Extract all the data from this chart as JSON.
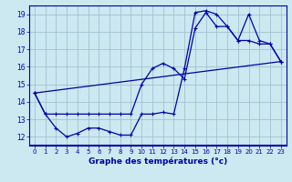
{
  "xlabel": "Graphe des températures (°c)",
  "bg_color": "#cce8f0",
  "line_color": "#0000aa",
  "xlim": [
    -0.5,
    23.5
  ],
  "ylim": [
    11.5,
    19.5
  ],
  "xticks": [
    0,
    1,
    2,
    3,
    4,
    5,
    6,
    7,
    8,
    9,
    10,
    11,
    12,
    13,
    14,
    15,
    16,
    17,
    18,
    19,
    20,
    21,
    22,
    23
  ],
  "yticks": [
    12,
    13,
    14,
    15,
    16,
    17,
    18,
    19
  ],
  "grid_color": "#99bbcc",
  "line1_x": [
    0,
    23
  ],
  "line1_y": [
    14.5,
    16.3
  ],
  "line2_x": [
    0,
    1,
    2,
    3,
    4,
    5,
    6,
    7,
    8,
    9,
    10,
    11,
    12,
    13,
    14,
    15,
    16,
    17,
    18,
    19,
    20,
    21,
    22,
    23
  ],
  "line2_y": [
    14.5,
    13.3,
    12.5,
    12.0,
    12.2,
    12.5,
    12.5,
    12.3,
    12.1,
    12.1,
    13.3,
    13.3,
    13.4,
    13.3,
    15.9,
    19.1,
    19.2,
    19.0,
    18.3,
    17.5,
    17.5,
    17.3,
    17.3,
    16.3
  ],
  "line3_x": [
    0,
    1,
    2,
    3,
    4,
    5,
    6,
    7,
    8,
    9,
    10,
    11,
    12,
    13,
    14,
    15,
    16,
    17,
    18,
    19,
    20,
    21,
    22,
    23
  ],
  "line3_y": [
    14.5,
    13.3,
    13.3,
    13.3,
    13.3,
    13.3,
    13.3,
    13.3,
    13.3,
    13.3,
    15.0,
    15.9,
    16.2,
    15.9,
    15.3,
    18.2,
    19.1,
    18.3,
    18.3,
    17.5,
    19.0,
    17.5,
    17.3,
    16.3
  ]
}
